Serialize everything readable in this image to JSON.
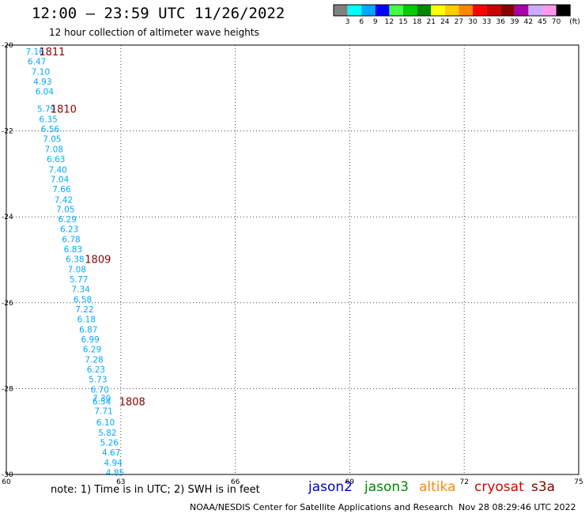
{
  "header": {
    "title": "12:00 — 23:59 UTC 11/26/2022",
    "subtitle": "12 hour collection of altimeter wave heights"
  },
  "color_scale": {
    "colors": [
      "#808080",
      "#00ffff",
      "#00aaff",
      "#0000ff",
      "#44ff44",
      "#00cc00",
      "#008800",
      "#ffff00",
      "#ffcc00",
      "#ff8800",
      "#ff0000",
      "#cc0000",
      "#880000",
      "#aa00aa",
      "#ccaaff",
      "#ff99ee",
      "#000000"
    ],
    "labels": [
      "3",
      "6",
      "9",
      "12",
      "15",
      "18",
      "21",
      "24",
      "27",
      "30",
      "33",
      "36",
      "39",
      "42",
      "45",
      "70"
    ],
    "unit": "(ft)"
  },
  "footer": {
    "note": "note: 1) Time is in UTC; 2) SWH is in feet",
    "credit": "NOAA/NESDIS Center for Satellite Applications and Research",
    "timestamp": "Nov 28 08:29:46 UTC 2022"
  },
  "satellites": [
    {
      "name": "jason2",
      "color": "#0000cc"
    },
    {
      "name": "jason3",
      "color": "#008800"
    },
    {
      "name": "altika",
      "color": "#ff8800"
    },
    {
      "name": "cryosat",
      "color": "#dd0000"
    },
    {
      "name": "s3a",
      "color": "#880000"
    }
  ],
  "chart_data": {
    "type": "scatter",
    "title": "12:00 — 23:59 UTC 11/26/2022",
    "subtitle": "12 hour collection of altimeter wave heights",
    "x_ticks": [
      60,
      63,
      66,
      69,
      72,
      75
    ],
    "y_ticks": [
      -20,
      -22,
      -24,
      -26,
      -28,
      -30
    ],
    "xlim": [
      60,
      75
    ],
    "ylim": [
      -30,
      -20
    ],
    "grid": true,
    "points": [
      {
        "x": 60.75,
        "y": -20.15,
        "label": "7.16"
      },
      {
        "x": 60.8,
        "y": -20.38,
        "label": "6.47"
      },
      {
        "x": 60.9,
        "y": -20.62,
        "label": "7.10"
      },
      {
        "x": 60.95,
        "y": -20.85,
        "label": "4.93"
      },
      {
        "x": 61.0,
        "y": -21.08,
        "label": "6.04"
      },
      {
        "x": 61.05,
        "y": -21.48,
        "label": "5.79"
      },
      {
        "x": 61.1,
        "y": -21.72,
        "label": "6.35"
      },
      {
        "x": 61.15,
        "y": -21.95,
        "label": "6.56"
      },
      {
        "x": 61.2,
        "y": -22.18,
        "label": "7.05"
      },
      {
        "x": 61.25,
        "y": -22.42,
        "label": "7.08"
      },
      {
        "x": 61.3,
        "y": -22.65,
        "label": "6.63"
      },
      {
        "x": 61.35,
        "y": -22.9,
        "label": "7.40"
      },
      {
        "x": 61.4,
        "y": -23.12,
        "label": "7.04"
      },
      {
        "x": 61.45,
        "y": -23.35,
        "label": "7.66"
      },
      {
        "x": 61.5,
        "y": -23.6,
        "label": "7.42"
      },
      {
        "x": 61.55,
        "y": -23.82,
        "label": "7.05"
      },
      {
        "x": 61.6,
        "y": -24.05,
        "label": "6.29"
      },
      {
        "x": 61.65,
        "y": -24.28,
        "label": "6.23"
      },
      {
        "x": 61.7,
        "y": -24.52,
        "label": "6.78"
      },
      {
        "x": 61.75,
        "y": -24.75,
        "label": "6.83"
      },
      {
        "x": 61.8,
        "y": -24.98,
        "label": "6.38"
      },
      {
        "x": 61.85,
        "y": -25.22,
        "label": "7.08"
      },
      {
        "x": 61.9,
        "y": -25.45,
        "label": "5.77"
      },
      {
        "x": 61.95,
        "y": -25.68,
        "label": "7.34"
      },
      {
        "x": 62.0,
        "y": -25.92,
        "label": "6.58"
      },
      {
        "x": 62.05,
        "y": -26.15,
        "label": "7.22"
      },
      {
        "x": 62.1,
        "y": -26.38,
        "label": "6.18"
      },
      {
        "x": 62.15,
        "y": -26.62,
        "label": "6.87"
      },
      {
        "x": 62.2,
        "y": -26.85,
        "label": "6.99"
      },
      {
        "x": 62.25,
        "y": -27.08,
        "label": "6.29"
      },
      {
        "x": 62.3,
        "y": -27.32,
        "label": "7.28"
      },
      {
        "x": 62.35,
        "y": -27.55,
        "label": "6.23"
      },
      {
        "x": 62.4,
        "y": -27.78,
        "label": "5.73"
      },
      {
        "x": 62.45,
        "y": -28.02,
        "label": "6.70"
      },
      {
        "x": 62.5,
        "y": -28.22,
        "label": "7.30"
      },
      {
        "x": 62.5,
        "y": -28.3,
        "label": "6.54"
      },
      {
        "x": 62.55,
        "y": -28.52,
        "label": "7.71"
      },
      {
        "x": 62.6,
        "y": -28.78,
        "label": "6.10"
      },
      {
        "x": 62.65,
        "y": -29.02,
        "label": "5.82"
      },
      {
        "x": 62.7,
        "y": -29.25,
        "label": "5.26"
      },
      {
        "x": 62.75,
        "y": -29.48,
        "label": "4.67"
      },
      {
        "x": 62.8,
        "y": -29.72,
        "label": "4.94"
      },
      {
        "x": 62.85,
        "y": -29.95,
        "label": "4.85"
      }
    ],
    "track_labels": [
      {
        "x": 61.2,
        "y": -20.15,
        "label": "1811"
      },
      {
        "x": 61.5,
        "y": -21.48,
        "label": "1810"
      },
      {
        "x": 62.4,
        "y": -24.98,
        "label": "1809"
      },
      {
        "x": 63.3,
        "y": -28.3,
        "label": "1808"
      }
    ],
    "point_color": "#00aaff",
    "track_label_color": "#880000"
  }
}
